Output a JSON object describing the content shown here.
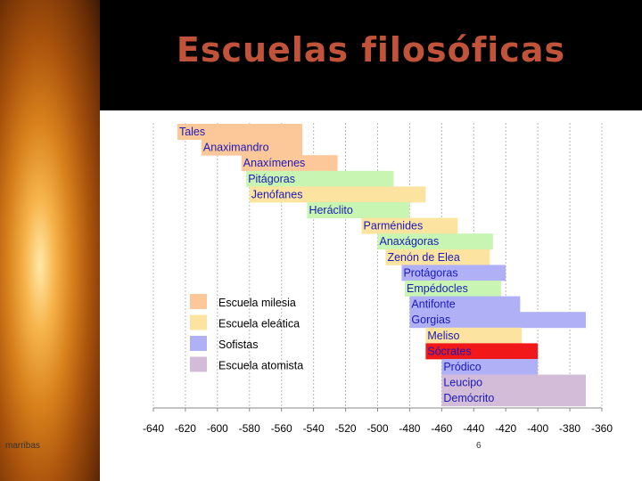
{
  "slide": {
    "title": "Escuelas filosóficas",
    "author": "marribas",
    "page_number": "6"
  },
  "colors": {
    "title": "#c0533a",
    "milesia": "#fdc899",
    "eleatica": "#fde3a0",
    "sofistas": "#b0b0f7",
    "atomista": "#d3bcd8",
    "pitagoras": "#c8f5b2",
    "socrates": "#f01818"
  },
  "chart_data": {
    "type": "bar",
    "orientation": "horizontal",
    "title": "",
    "xlabel": "",
    "ylabel": "",
    "xlim": [
      -640,
      -360
    ],
    "xticks": [
      -640,
      -620,
      -600,
      -580,
      -560,
      -540,
      -520,
      -500,
      -480,
      -460,
      -440,
      -420,
      -400,
      -380,
      -360
    ],
    "grid": true,
    "legend_position": "left-middle",
    "legend": [
      {
        "name": "Escuela milesia",
        "color": "#fdc899"
      },
      {
        "name": "Escuela eleática",
        "color": "#fde3a0"
      },
      {
        "name": "Sofistas",
        "color": "#b0b0f7"
      },
      {
        "name": "Escuela atomista",
        "color": "#d3bcd8"
      }
    ],
    "series": [
      {
        "name": "Tales",
        "start": -625,
        "end": -547,
        "color": "#fdc899"
      },
      {
        "name": "Anaximandro",
        "start": -610,
        "end": -547,
        "color": "#fdc899"
      },
      {
        "name": "Anaxímenes",
        "start": -585,
        "end": -525,
        "color": "#fdc899"
      },
      {
        "name": "Pitágoras",
        "start": -582,
        "end": -490,
        "color": "#c8f5b2"
      },
      {
        "name": "Jenófanes",
        "start": -580,
        "end": -470,
        "color": "#fde3a0"
      },
      {
        "name": "Heráclito",
        "start": -544,
        "end": -480,
        "color": "#c8f5b2"
      },
      {
        "name": "Parménides",
        "start": -510,
        "end": -450,
        "color": "#fde3a0"
      },
      {
        "name": "Anaxágoras",
        "start": -500,
        "end": -428,
        "color": "#c8f5b2"
      },
      {
        "name": "Zenón de Elea",
        "start": -495,
        "end": -430,
        "color": "#fde3a0"
      },
      {
        "name": "Protágoras",
        "start": -485,
        "end": -420,
        "color": "#b0b0f7"
      },
      {
        "name": "Empédocles",
        "start": -483,
        "end": -423,
        "color": "#c8f5b2"
      },
      {
        "name": "Antifonte",
        "start": -480,
        "end": -411,
        "color": "#b0b0f7"
      },
      {
        "name": "Gorgias",
        "start": -480,
        "end": -370,
        "color": "#b0b0f7"
      },
      {
        "name": "Meliso",
        "start": -470,
        "end": -410,
        "color": "#fde3a0"
      },
      {
        "name": "Sócrates",
        "start": -470,
        "end": -400,
        "color": "#f01818"
      },
      {
        "name": "Pródico",
        "start": -460,
        "end": -400,
        "color": "#b0b0f7"
      },
      {
        "name": "Leucipo",
        "start": -460,
        "end": -370,
        "color": "#d3bcd8"
      },
      {
        "name": "Demócrito",
        "start": -460,
        "end": -370,
        "color": "#d3bcd8"
      }
    ]
  }
}
